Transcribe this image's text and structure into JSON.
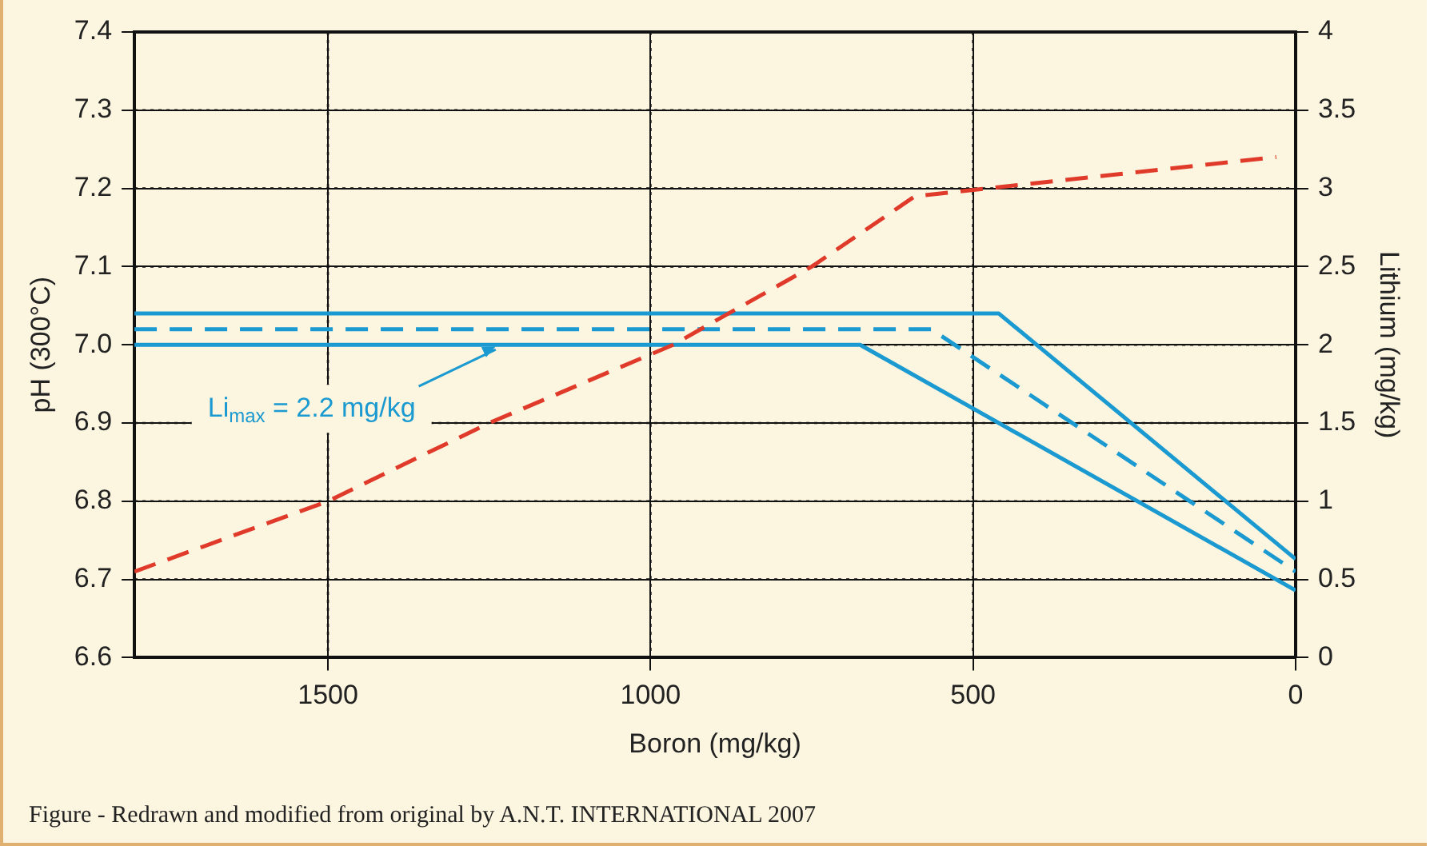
{
  "chart_data": {
    "type": "line",
    "xlabel": "Boron (mg/kg)",
    "ylabel": "pH (300°C)",
    "y2label": "Lithium (mg/kg)",
    "xlim": [
      1800,
      0
    ],
    "xticks": [
      1500,
      1000,
      500,
      0
    ],
    "ylim": [
      6.6,
      7.4
    ],
    "yticks": [
      6.6,
      6.7,
      6.8,
      6.9,
      {
        "value": 7,
        "label": "7.0"
      },
      7.1,
      7.2,
      7.3,
      7.4
    ],
    "y2lim": [
      0,
      4
    ],
    "y2ticks": [
      0,
      0.5,
      1,
      1.5,
      2,
      2.5,
      3,
      3.5,
      4
    ],
    "grid": true,
    "legend": false,
    "marker": "none",
    "series": [
      {
        "color": "#e03a2a",
        "line_style": "dashed",
        "x": [
          1800,
          1500,
          1250,
          965,
          750,
          590,
          30
        ],
        "values": [
          6.71,
          6.8,
          6.9,
          7.0,
          7.1,
          7.19,
          7.24
        ]
      },
      {
        "color": "#1a9ad0",
        "line_style": "solid",
        "axis": "y2",
        "x": [
          1800,
          460,
          0
        ],
        "values": [
          2.2,
          2.2,
          0.63
        ]
      },
      {
        "color": "#1a9ad0",
        "line_style": "dashed",
        "axis": "y2",
        "x": [
          1800,
          565,
          0
        ],
        "values": [
          2.1,
          2.1,
          0.55
        ]
      },
      {
        "color": "#1a9ad0",
        "line_style": "solid",
        "axis": "y2",
        "x": [
          1800,
          675,
          0
        ],
        "values": [
          2.0,
          2.0,
          0.43
        ]
      }
    ],
    "annotations": [
      {
        "text": "Li$_{max}$ = 2.2 mg/kg",
        "x": 1240,
        "y": 7.0
      },
      "Figure - Redrawn and modified from original by A.N.T. INTERNATIONAL 2007"
    ]
  }
}
